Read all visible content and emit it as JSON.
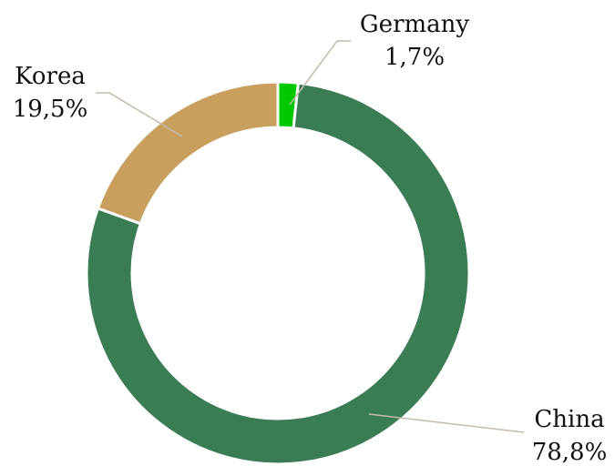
{
  "chart_data": {
    "type": "donut",
    "categories": [
      "Germany",
      "China",
      "Korea"
    ],
    "values": [
      1.7,
      78.8,
      19.5
    ],
    "value_labels": [
      "1,7%",
      "78,8%",
      "19,5%"
    ],
    "colors": [
      "#00c800",
      "#3a7d55",
      "#c89f5d"
    ]
  }
}
